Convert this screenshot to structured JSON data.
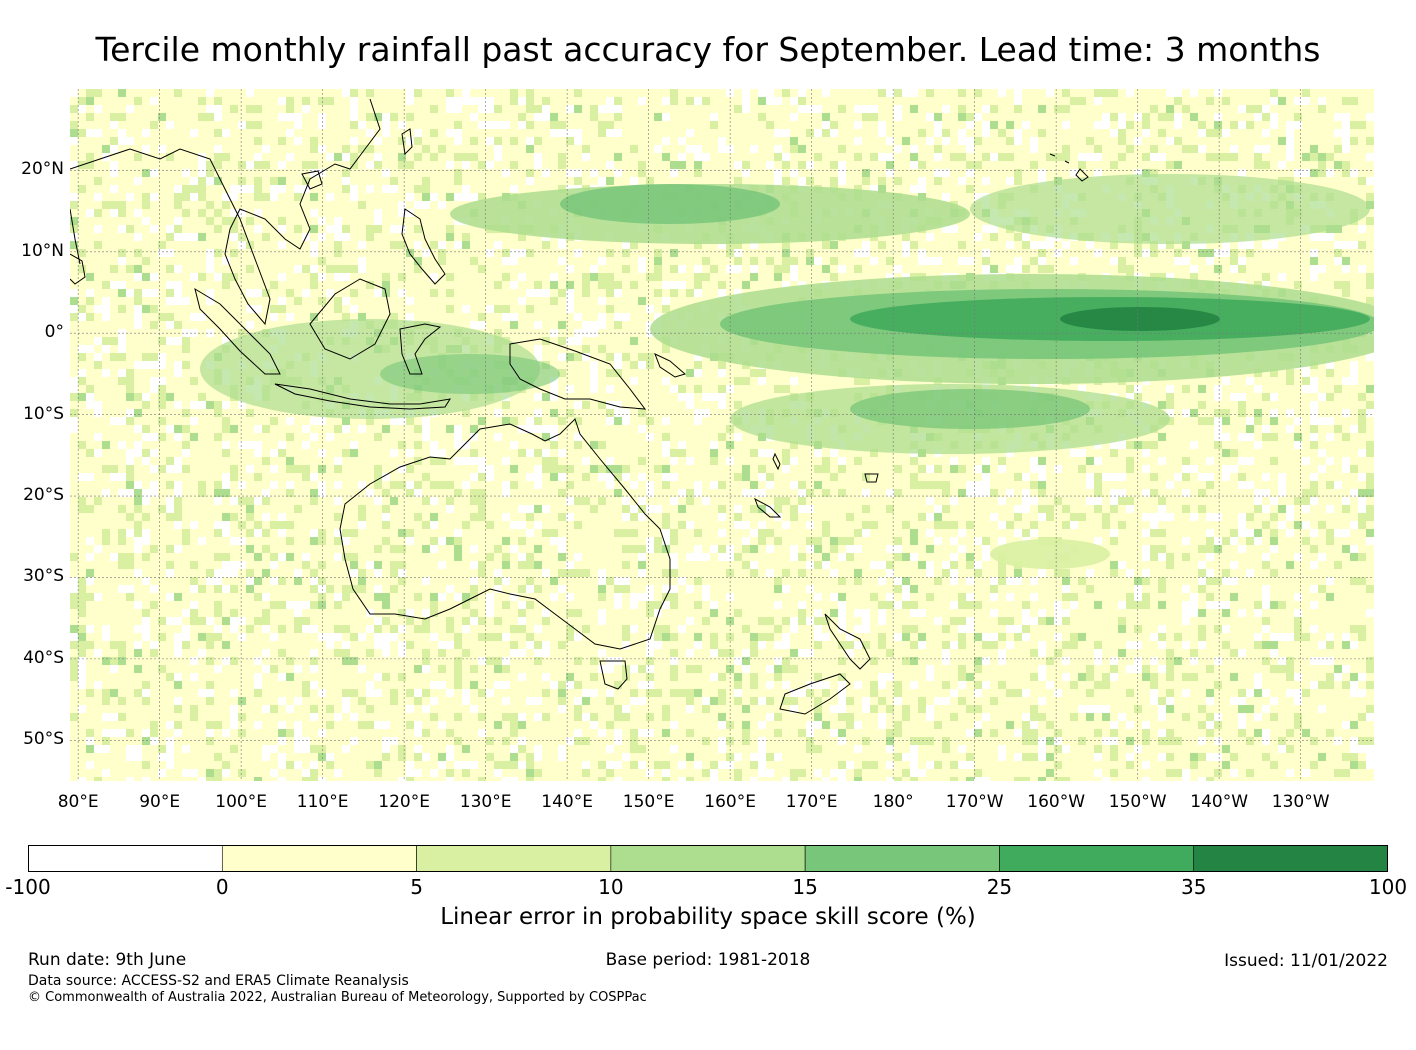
{
  "title": "Tercile monthly rainfall past accuracy for September. Lead time: 3 months",
  "map": {
    "lat_labels": [
      "20°N",
      "10°N",
      "0°",
      "10°S",
      "20°S",
      "30°S",
      "40°S",
      "50°S"
    ],
    "lat_values": [
      20,
      10,
      0,
      -10,
      -20,
      -30,
      -40,
      -50
    ],
    "lon_labels": [
      "80°E",
      "90°E",
      "100°E",
      "110°E",
      "120°E",
      "130°E",
      "140°E",
      "150°E",
      "160°E",
      "170°E",
      "180°",
      "170°W",
      "160°W",
      "150°W",
      "140°W",
      "130°W"
    ],
    "lon_values": [
      80,
      90,
      100,
      110,
      120,
      130,
      140,
      150,
      160,
      170,
      180,
      190,
      200,
      210,
      220,
      230
    ],
    "lon_range": [
      79,
      239
    ],
    "lat_range": [
      -55,
      30
    ],
    "gridlines": true,
    "coastlines": [
      "Australia",
      "New Zealand",
      "Indonesia",
      "Papua New Guinea",
      "Philippines",
      "Southeast Asia",
      "India",
      "Pacific Islands"
    ]
  },
  "colorbar": {
    "ticks": [
      "-100",
      "0",
      "5",
      "10",
      "15",
      "25",
      "35",
      "100"
    ],
    "colors": [
      "#ffffff",
      "#ffffcc",
      "#d9f0a3",
      "#addd8e",
      "#78c679",
      "#41ab5d",
      "#238443"
    ],
    "label": "Linear error in probability space skill score (%)"
  },
  "footer": {
    "run_date": "Run date: 9th June",
    "base_period": "Base period: 1981-2018",
    "issued": "Issued: 11/01/2022",
    "data_source": "Data source: ACCESS-S2 and ERA5 Climate Reanalysis",
    "copyright": "© Commonwealth of Australia 2022, Australian Bureau of Meteorology, Supported by COSPPac"
  }
}
